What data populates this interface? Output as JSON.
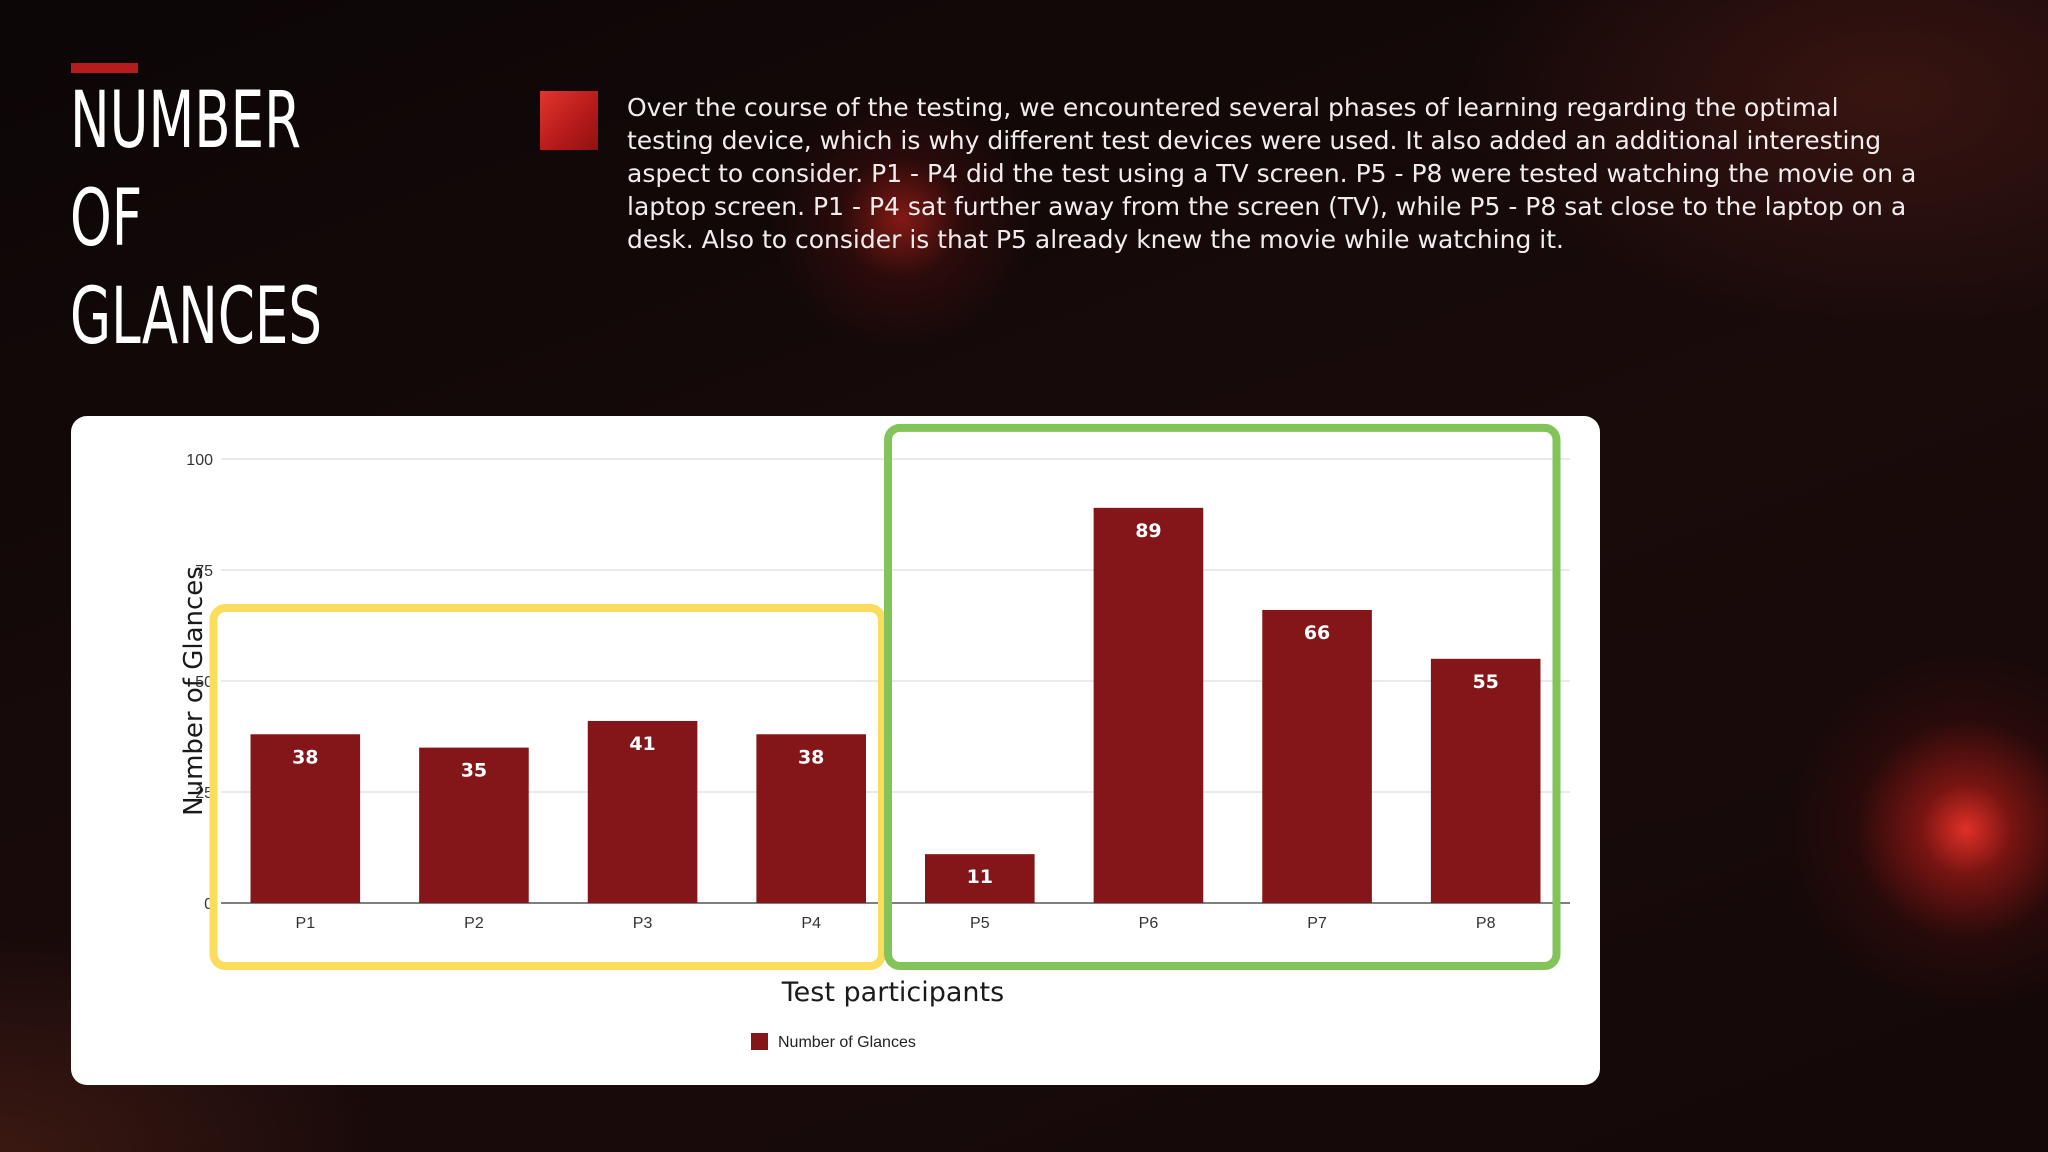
{
  "title": "NUMBER OF\nGLANCES",
  "description": "Over the course of the testing, we encountered several phases of learning regarding the optimal testing device, which is why different test devices were used. It also added an additional interesting aspect to consider. P1 - P4 did the test using a TV screen. P5 - P8 were tested watching the movie on a laptop screen. P1 - P4 sat further away from the screen (TV), while P5 - P8 sat close to the laptop on a desk. Also to consider is that P5 already knew the movie while watching it.",
  "colors": {
    "accent": "#b71c1c",
    "bar": "#841518",
    "group_tv": "#fbdd5d",
    "group_laptop": "#82c45a"
  },
  "chart_data": {
    "type": "bar",
    "title": "",
    "xlabel": "Test participants",
    "ylabel": "Number of Glances",
    "categories": [
      "P1",
      "P2",
      "P3",
      "P4",
      "P5",
      "P6",
      "P7",
      "P8"
    ],
    "series": [
      {
        "name": "Number of Glances",
        "values": [
          38,
          35,
          41,
          38,
          11,
          89,
          66,
          55
        ]
      }
    ],
    "ylim": [
      0,
      100
    ],
    "yticks": [
      0,
      25,
      50,
      75,
      100
    ],
    "data_labels": true,
    "grid": true,
    "legend": "bottom-center",
    "groups": [
      {
        "categories": [
          "P1",
          "P2",
          "P3",
          "P4"
        ],
        "color": "#fbdd5d"
      },
      {
        "categories": [
          "P5",
          "P6",
          "P7",
          "P8"
        ],
        "color": "#82c45a"
      }
    ]
  }
}
